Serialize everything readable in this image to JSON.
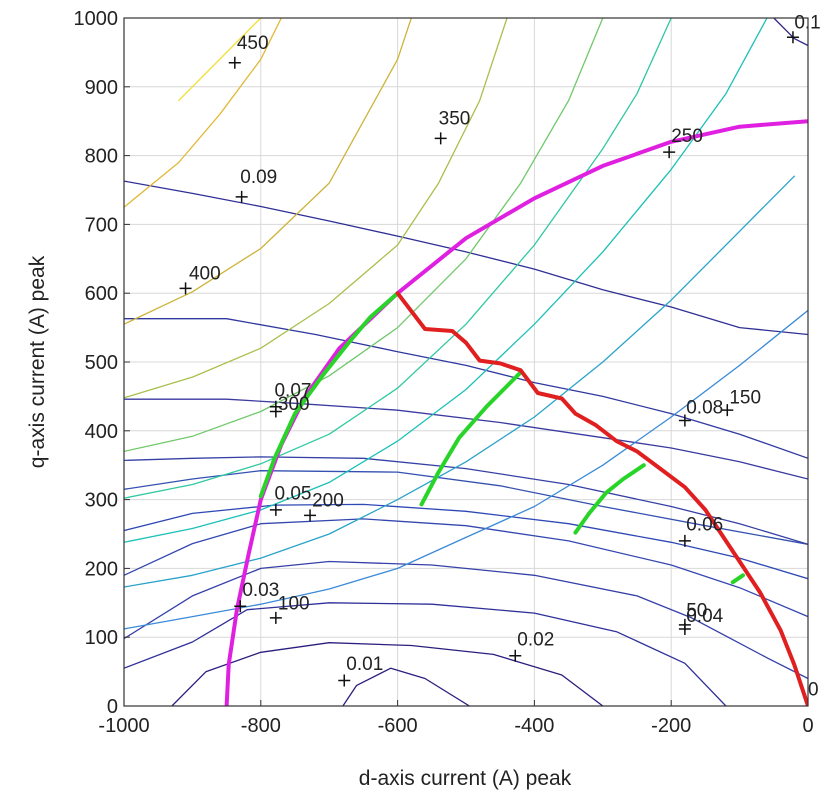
{
  "chart_data": {
    "type": "line",
    "title": "",
    "xlabel": "d-axis current (A) peak",
    "ylabel": "q-axis current (A) peak",
    "xlim": [
      -1000,
      0
    ],
    "ylim": [
      0,
      1000
    ],
    "xticks": [
      -1000,
      -800,
      -600,
      -400,
      -200,
      0
    ],
    "yticks": [
      0,
      100,
      200,
      300,
      400,
      500,
      600,
      700,
      800,
      900,
      1000
    ],
    "xtick_labels": [
      "-1000",
      "-800",
      "-600",
      "-400",
      "-200",
      "0"
    ],
    "ytick_labels": [
      "0",
      "100",
      "200",
      "300",
      "400",
      "500",
      "600",
      "700",
      "800",
      "900",
      "1000"
    ],
    "grid": true,
    "series": [
      {
        "color": "#2a1f7e",
        "values": [
          [
            -680,
            0
          ],
          [
            -660,
            30
          ],
          [
            -610,
            55
          ],
          [
            -560,
            40
          ],
          [
            -495,
            0
          ]
        ]
      },
      {
        "color": "#2a1f7e",
        "values": [
          [
            -930,
            0
          ],
          [
            -880,
            50
          ],
          [
            -800,
            78
          ],
          [
            -700,
            92
          ],
          [
            -580,
            88
          ],
          [
            -460,
            75
          ],
          [
            -360,
            45
          ],
          [
            -300,
            0
          ]
        ]
      },
      {
        "color": "#30309a",
        "values": [
          [
            -1000,
            55
          ],
          [
            -900,
            93
          ],
          [
            -820,
            140
          ],
          [
            -700,
            150
          ],
          [
            -550,
            148
          ],
          [
            -400,
            135
          ],
          [
            -280,
            108
          ],
          [
            -180,
            62
          ],
          [
            -120,
            0
          ]
        ]
      },
      {
        "color": "#3540a8",
        "values": [
          [
            -1000,
            98
          ],
          [
            -900,
            160
          ],
          [
            -800,
            200
          ],
          [
            -700,
            210
          ],
          [
            -550,
            205
          ],
          [
            -400,
            190
          ],
          [
            -250,
            160
          ],
          [
            -170,
            128
          ],
          [
            -60,
            70
          ],
          [
            0,
            40
          ]
        ]
      },
      {
        "color": "#3548b0",
        "values": [
          [
            -1000,
            190
          ],
          [
            -900,
            236
          ],
          [
            -800,
            265
          ],
          [
            -650,
            272
          ],
          [
            -500,
            262
          ],
          [
            -350,
            240
          ],
          [
            -200,
            205
          ],
          [
            -100,
            172
          ],
          [
            0,
            130
          ]
        ]
      },
      {
        "color": "#2e48b5",
        "values": [
          [
            -1000,
            255
          ],
          [
            -900,
            280
          ],
          [
            -780,
            292
          ],
          [
            -650,
            293
          ],
          [
            -500,
            283
          ],
          [
            -350,
            265
          ],
          [
            -200,
            238
          ],
          [
            -100,
            215
          ],
          [
            0,
            185
          ]
        ]
      },
      {
        "color": "#3450b0",
        "values": [
          [
            -1000,
            315
          ],
          [
            -900,
            330
          ],
          [
            -800,
            342
          ],
          [
            -600,
            340
          ],
          [
            -450,
            320
          ],
          [
            -300,
            290
          ],
          [
            -150,
            262
          ],
          [
            0,
            235
          ]
        ]
      },
      {
        "color": "#3540a5",
        "values": [
          [
            -1000,
            357
          ],
          [
            -900,
            360
          ],
          [
            -800,
            362
          ],
          [
            -650,
            360
          ],
          [
            -500,
            345
          ],
          [
            -350,
            322
          ],
          [
            -200,
            290
          ],
          [
            -100,
            265
          ],
          [
            0,
            235
          ]
        ]
      },
      {
        "color": "#3a3aa0",
        "values": [
          [
            -1000,
            446
          ],
          [
            -850,
            446
          ],
          [
            -750,
            440
          ],
          [
            -600,
            430
          ],
          [
            -450,
            412
          ],
          [
            -300,
            390
          ],
          [
            -200,
            375
          ],
          [
            -100,
            355
          ],
          [
            0,
            330
          ]
        ]
      },
      {
        "color": "#3038a0",
        "values": [
          [
            -1000,
            563
          ],
          [
            -850,
            563
          ],
          [
            -720,
            540
          ],
          [
            -600,
            515
          ],
          [
            -500,
            495
          ],
          [
            -400,
            470
          ],
          [
            -300,
            450
          ],
          [
            -200,
            425
          ],
          [
            -100,
            395
          ],
          [
            0,
            360
          ]
        ]
      },
      {
        "color": "#302f95",
        "values": [
          [
            -1000,
            763
          ],
          [
            -900,
            745
          ],
          [
            -800,
            726
          ],
          [
            -700,
            705
          ],
          [
            -600,
            683
          ],
          [
            -500,
            660
          ],
          [
            -400,
            635
          ],
          [
            -300,
            605
          ],
          [
            -200,
            580
          ],
          [
            -100,
            550
          ],
          [
            0,
            540
          ]
        ]
      },
      {
        "color": "#2e2888",
        "values": [
          [
            -50,
            1000
          ],
          [
            -20,
            970
          ],
          [
            0,
            960
          ]
        ]
      },
      {
        "color": "#3a8ad8",
        "values": [
          [
            -1000,
            112
          ],
          [
            -900,
            130
          ],
          [
            -800,
            148
          ],
          [
            -700,
            170
          ],
          [
            -600,
            200
          ],
          [
            -500,
            245
          ],
          [
            -400,
            290
          ],
          [
            -300,
            350
          ],
          [
            -200,
            420
          ],
          [
            -100,
            495
          ],
          [
            0,
            575
          ]
        ]
      },
      {
        "color": "#2aa3c9",
        "values": [
          [
            -1000,
            173
          ],
          [
            -900,
            190
          ],
          [
            -800,
            215
          ],
          [
            -700,
            250
          ],
          [
            -600,
            300
          ],
          [
            -500,
            355
          ],
          [
            -400,
            420
          ],
          [
            -300,
            500
          ],
          [
            -200,
            590
          ],
          [
            -100,
            690
          ],
          [
            -20,
            770
          ]
        ]
      },
      {
        "color": "#1cc0b8",
        "values": [
          [
            -1000,
            238
          ],
          [
            -900,
            258
          ],
          [
            -800,
            285
          ],
          [
            -700,
            325
          ],
          [
            -600,
            385
          ],
          [
            -500,
            460
          ],
          [
            -400,
            555
          ],
          [
            -300,
            660
          ],
          [
            -200,
            780
          ],
          [
            -120,
            890
          ],
          [
            -60,
            1000
          ]
        ]
      },
      {
        "color": "#30c8a0",
        "values": [
          [
            -1000,
            302
          ],
          [
            -900,
            322
          ],
          [
            -800,
            352
          ],
          [
            -700,
            395
          ],
          [
            -600,
            462
          ],
          [
            -500,
            555
          ],
          [
            -400,
            670
          ],
          [
            -300,
            810
          ],
          [
            -250,
            890
          ],
          [
            -200,
            1000
          ]
        ]
      },
      {
        "color": "#70c86a",
        "values": [
          [
            -1000,
            370
          ],
          [
            -900,
            392
          ],
          [
            -800,
            428
          ],
          [
            -700,
            480
          ],
          [
            -600,
            550
          ],
          [
            -500,
            650
          ],
          [
            -420,
            760
          ],
          [
            -350,
            880
          ],
          [
            -300,
            1000
          ]
        ]
      },
      {
        "color": "#a8c04c",
        "values": [
          [
            -1000,
            448
          ],
          [
            -900,
            478
          ],
          [
            -800,
            520
          ],
          [
            -700,
            585
          ],
          [
            -600,
            670
          ],
          [
            -540,
            760
          ],
          [
            -480,
            880
          ],
          [
            -440,
            1000
          ]
        ]
      },
      {
        "color": "#cdb33a",
        "values": [
          [
            -1000,
            555
          ],
          [
            -900,
            602
          ],
          [
            -800,
            665
          ],
          [
            -700,
            760
          ],
          [
            -650,
            850
          ],
          [
            -600,
            940
          ],
          [
            -580,
            1000
          ]
        ]
      },
      {
        "color": "#e3b838",
        "values": [
          [
            -1000,
            725
          ],
          [
            -920,
            790
          ],
          [
            -860,
            860
          ],
          [
            -800,
            940
          ],
          [
            -770,
            1000
          ]
        ]
      },
      {
        "color": "#f2e036",
        "values": [
          [
            -920,
            880
          ],
          [
            -880,
            920
          ],
          [
            -840,
            960
          ],
          [
            -800,
            1000
          ]
        ]
      },
      {
        "color": "#e020e0",
        "values": [
          [
            -850,
            0
          ],
          [
            -847,
            60
          ],
          [
            -835,
            140
          ],
          [
            -818,
            220
          ],
          [
            -800,
            300
          ],
          [
            -770,
            380
          ],
          [
            -735,
            450
          ],
          [
            -685,
            520
          ],
          [
            -600,
            600
          ],
          [
            -500,
            680
          ],
          [
            -400,
            738
          ],
          [
            -300,
            785
          ],
          [
            -200,
            820
          ],
          [
            -100,
            842
          ],
          [
            0,
            850
          ]
        ]
      },
      {
        "color": "#28d428",
        "values": [
          [
            -800,
            305
          ],
          [
            -780,
            360
          ],
          [
            -750,
            425
          ],
          [
            -710,
            480
          ],
          [
            -670,
            530
          ],
          [
            -640,
            565
          ],
          [
            -600,
            600
          ]
        ]
      },
      {
        "color": "#28d428",
        "values": [
          [
            -565,
            293
          ],
          [
            -540,
            340
          ],
          [
            -510,
            390
          ],
          [
            -470,
            435
          ],
          [
            -420,
            485
          ]
        ]
      },
      {
        "color": "#28d428",
        "values": [
          [
            -340,
            252
          ],
          [
            -320,
            280
          ],
          [
            -295,
            310
          ],
          [
            -270,
            330
          ],
          [
            -240,
            350
          ]
        ]
      },
      {
        "color": "#28d428",
        "values": [
          [
            -110,
            180
          ],
          [
            -95,
            190
          ]
        ]
      },
      {
        "color": "#e02020",
        "values": [
          [
            -600,
            600
          ],
          [
            -560,
            548
          ],
          [
            -520,
            545
          ],
          [
            -500,
            528
          ],
          [
            -480,
            502
          ],
          [
            -450,
            498
          ],
          [
            -420,
            488
          ],
          [
            -395,
            455
          ],
          [
            -360,
            447
          ],
          [
            -340,
            425
          ],
          [
            -310,
            408
          ],
          [
            -280,
            385
          ],
          [
            -250,
            370
          ],
          [
            -220,
            348
          ],
          [
            -180,
            318
          ],
          [
            -150,
            285
          ],
          [
            -120,
            240
          ],
          [
            -100,
            210
          ],
          [
            -70,
            165
          ],
          [
            -40,
            110
          ],
          [
            -20,
            60
          ],
          [
            0,
            0
          ]
        ]
      }
    ],
    "annotations": [
      {
        "text": "450",
        "x": -835,
        "y": 955
      },
      {
        "text": "350",
        "x": -540,
        "y": 845
      },
      {
        "text": "250",
        "x": -200,
        "y": 820
      },
      {
        "text": "0.1",
        "x": -20,
        "y": 985
      },
      {
        "text": "0.09",
        "x": -830,
        "y": 760
      },
      {
        "text": "400",
        "x": -905,
        "y": 620
      },
      {
        "text": "0.07",
        "x": -780,
        "y": 450
      },
      {
        "text": "300",
        "x": -775,
        "y": 430
      },
      {
        "text": "0.08",
        "x": -178,
        "y": 425
      },
      {
        "text": "150",
        "x": -115,
        "y": 440
      },
      {
        "text": "0.05",
        "x": -780,
        "y": 300
      },
      {
        "text": "200",
        "x": -725,
        "y": 290
      },
      {
        "text": "0.06",
        "x": -178,
        "y": 255
      },
      {
        "text": "0.03",
        "x": -827,
        "y": 160
      },
      {
        "text": "100",
        "x": -775,
        "y": 140
      },
      {
        "text": "50",
        "x": -178,
        "y": 130
      },
      {
        "text": "0.04",
        "x": -178,
        "y": 122
      },
      {
        "text": "0.02",
        "x": -425,
        "y": 88
      },
      {
        "text": "0.01",
        "x": -675,
        "y": 52
      },
      {
        "text": "0",
        "x": 0,
        "y": 15
      }
    ],
    "markers": [
      [
        -838,
        935
      ],
      [
        -537,
        825
      ],
      [
        -203,
        805
      ],
      [
        -22,
        972
      ],
      [
        -828,
        740
      ],
      [
        -910,
        607
      ],
      [
        -778,
        435
      ],
      [
        -778,
        428
      ],
      [
        -180,
        415
      ],
      [
        -118,
        430
      ],
      [
        -778,
        285
      ],
      [
        -728,
        277
      ],
      [
        -180,
        240
      ],
      [
        -830,
        145
      ],
      [
        -778,
        128
      ],
      [
        -180,
        118
      ],
      [
        -180,
        112
      ],
      [
        -428,
        73
      ],
      [
        -678,
        37
      ]
    ]
  }
}
